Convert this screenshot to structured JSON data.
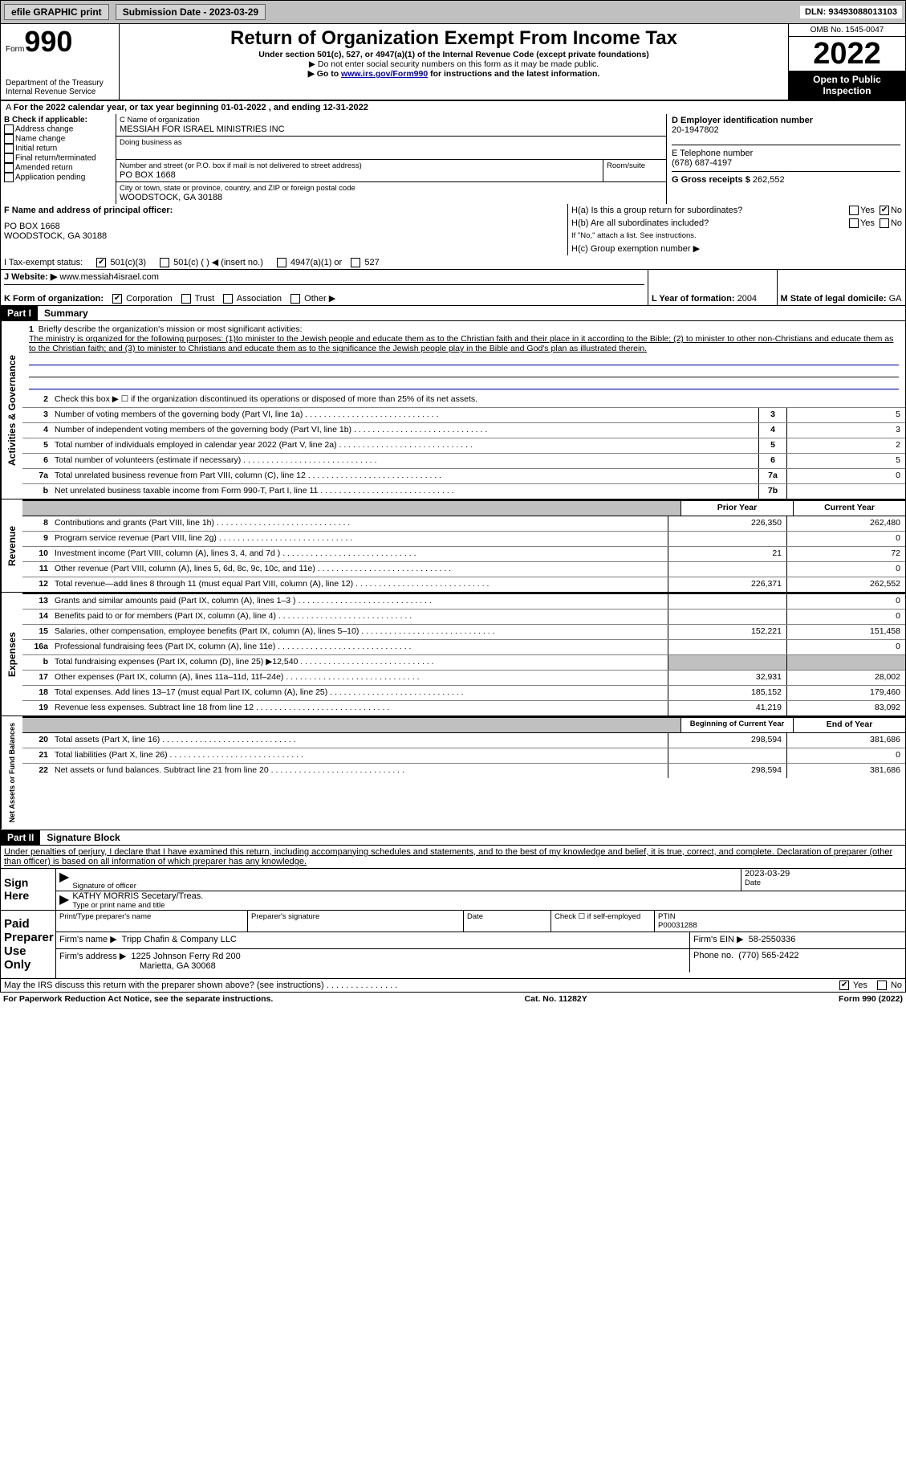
{
  "header_bar": {
    "efile_label": "efile GRAPHIC print",
    "submission_label": "Submission Date - 2023-03-29",
    "dln_label": "DLN: 93493088013103"
  },
  "title_block": {
    "form_word": "Form",
    "form_number": "990",
    "dept1": "Department of the Treasury",
    "dept2": "Internal Revenue Service",
    "main_title": "Return of Organization Exempt From Income Tax",
    "subtitle": "Under section 501(c), 527, or 4947(a)(1) of the Internal Revenue Code (except private foundations)",
    "note1": "▶ Do not enter social security numbers on this form as it may be made public.",
    "note2_pre": "▶ Go to ",
    "note2_link": "www.irs.gov/Form990",
    "note2_post": " for instructions and the latest information.",
    "omb": "OMB No. 1545-0047",
    "year": "2022",
    "open_public": "Open to Public Inspection"
  },
  "period_line": "For the 2022 calendar year, or tax year beginning 01-01-2022    , and ending 12-31-2022",
  "box_b": {
    "label": "B Check if applicable:",
    "items": [
      "Address change",
      "Name change",
      "Initial return",
      "Final return/terminated",
      "Amended return",
      "Application pending"
    ]
  },
  "box_c": {
    "name_label": "C Name of organization",
    "org_name": "MESSIAH FOR ISRAEL MINISTRIES INC",
    "dba_label": "Doing business as",
    "addr_label": "Number and street (or P.O. box if mail is not delivered to street address)",
    "room_label": "Room/suite",
    "street": "PO BOX 1668",
    "city_label": "City or town, state or province, country, and ZIP or foreign postal code",
    "city": "WOODSTOCK, GA  30188"
  },
  "box_d": {
    "ein_label": "D Employer identification number",
    "ein": "20-1947802"
  },
  "box_e": {
    "label": "E Telephone number",
    "phone": "(678) 687-4197"
  },
  "box_g": {
    "label": "G Gross receipts $",
    "amount": "262,552"
  },
  "box_f": {
    "label": "F  Name and address of principal officer:",
    "line1": "PO BOX 1668",
    "line2": "WOODSTOCK, GA  30188"
  },
  "box_h": {
    "ha_label": "H(a)  Is this a group return for subordinates?",
    "hb_label": "H(b)  Are all subordinates included?",
    "hb_note": "If \"No,\" attach a list. See instructions.",
    "hc_label": "H(c)  Group exemption number ▶",
    "yes": "Yes",
    "no": "No"
  },
  "box_i": {
    "label": "I    Tax-exempt status:",
    "opt1": "501(c)(3)",
    "opt2": "501(c) (   ) ◀ (insert no.)",
    "opt3": "4947(a)(1) or",
    "opt4": "527"
  },
  "box_j": {
    "label": "J    Website: ▶",
    "url": "www.messiah4israel.com"
  },
  "box_k": {
    "label": "K Form of organization:",
    "opts": [
      "Corporation",
      "Trust",
      "Association",
      "Other ▶"
    ]
  },
  "box_l": {
    "label": "L Year of formation:",
    "val": "2004"
  },
  "box_m": {
    "label": "M State of legal domicile:",
    "val": "GA"
  },
  "part1": {
    "header": "Part I",
    "title": "Summary"
  },
  "mission": {
    "num": "1",
    "label": "Briefly describe the organization's mission or most significant activities:",
    "text": "The ministry is organized for the following purposes: (1)to minister to the Jewish people and educate them as to the Christian faith and their place in it according to the Bible; (2) to minister to other non-Christians and educate them as to the Christian faith; and (3) to minister to Christians and educate them as to the significance the Jewish people play in the Bible and God's plan as illustrated therein."
  },
  "line2": "Check this box ▶ ☐  if the organization discontinued its operations or disposed of more than 25% of its net assets.",
  "gov_rows": [
    {
      "n": "3",
      "label": "Number of voting members of the governing body (Part VI, line 1a)",
      "box": "3",
      "val": "5"
    },
    {
      "n": "4",
      "label": "Number of independent voting members of the governing body (Part VI, line 1b)",
      "box": "4",
      "val": "3"
    },
    {
      "n": "5",
      "label": "Total number of individuals employed in calendar year 2022 (Part V, line 2a)",
      "box": "5",
      "val": "2"
    },
    {
      "n": "6",
      "label": "Total number of volunteers (estimate if necessary)",
      "box": "6",
      "val": "5"
    },
    {
      "n": "7a",
      "label": "Total unrelated business revenue from Part VIII, column (C), line 12",
      "box": "7a",
      "val": "0"
    },
    {
      "n": "b",
      "label": "Net unrelated business taxable income from Form 990-T, Part I, line 11",
      "box": "7b",
      "val": ""
    }
  ],
  "col_headers": {
    "prior": "Prior Year",
    "current": "Current Year"
  },
  "revenue_rows": [
    {
      "n": "8",
      "label": "Contributions and grants (Part VIII, line 1h)",
      "prior": "226,350",
      "current": "262,480"
    },
    {
      "n": "9",
      "label": "Program service revenue (Part VIII, line 2g)",
      "prior": "",
      "current": "0"
    },
    {
      "n": "10",
      "label": "Investment income (Part VIII, column (A), lines 3, 4, and 7d )",
      "prior": "21",
      "current": "72"
    },
    {
      "n": "11",
      "label": "Other revenue (Part VIII, column (A), lines 5, 6d, 8c, 9c, 10c, and 11e)",
      "prior": "",
      "current": "0"
    },
    {
      "n": "12",
      "label": "Total revenue—add lines 8 through 11 (must equal Part VIII, column (A), line 12)",
      "prior": "226,371",
      "current": "262,552"
    }
  ],
  "expense_rows": [
    {
      "n": "13",
      "label": "Grants and similar amounts paid (Part IX, column (A), lines 1–3 )",
      "prior": "",
      "current": "0"
    },
    {
      "n": "14",
      "label": "Benefits paid to or for members (Part IX, column (A), line 4)",
      "prior": "",
      "current": "0"
    },
    {
      "n": "15",
      "label": "Salaries, other compensation, employee benefits (Part IX, column (A), lines 5–10)",
      "prior": "152,221",
      "current": "151,458"
    },
    {
      "n": "16a",
      "label": "Professional fundraising fees (Part IX, column (A), line 11e)",
      "prior": "",
      "current": "0"
    },
    {
      "n": "b",
      "label": "Total fundraising expenses (Part IX, column (D), line 25) ▶12,540",
      "prior": "shaded",
      "current": "shaded"
    },
    {
      "n": "17",
      "label": "Other expenses (Part IX, column (A), lines 11a–11d, 11f–24e)",
      "prior": "32,931",
      "current": "28,002"
    },
    {
      "n": "18",
      "label": "Total expenses. Add lines 13–17 (must equal Part IX, column (A), line 25)",
      "prior": "185,152",
      "current": "179,460"
    },
    {
      "n": "19",
      "label": "Revenue less expenses. Subtract line 18 from line 12",
      "prior": "41,219",
      "current": "83,092"
    }
  ],
  "na_headers": {
    "begin": "Beginning of Current Year",
    "end": "End of Year"
  },
  "na_rows": [
    {
      "n": "20",
      "label": "Total assets (Part X, line 16)",
      "prior": "298,594",
      "current": "381,686"
    },
    {
      "n": "21",
      "label": "Total liabilities (Part X, line 26)",
      "prior": "",
      "current": "0"
    },
    {
      "n": "22",
      "label": "Net assets or fund balances. Subtract line 21 from line 20",
      "prior": "298,594",
      "current": "381,686"
    }
  ],
  "part2": {
    "header": "Part II",
    "title": "Signature Block",
    "declaration": "Under penalties of perjury, I declare that I have examined this return, including accompanying schedules and statements, and to the best of my knowledge and belief, it is true, correct, and complete. Declaration of preparer (other than officer) is based on all information of which preparer has any knowledge."
  },
  "sign": {
    "sign_here": "Sign Here",
    "sig_officer": "Signature of officer",
    "date": "Date",
    "date_val": "2023-03-29",
    "name": "KATHY MORRIS  Secetary/Treas.",
    "type_label": "Type or print name and title"
  },
  "preparer": {
    "paid": "Paid Preparer Use Only",
    "name_col": "Print/Type preparer's name",
    "sig_col": "Preparer's signature",
    "date_col": "Date",
    "check_label": "Check ☐ if self-employed",
    "ptin_label": "PTIN",
    "ptin": "P00031288",
    "firm_name_label": "Firm's name    ▶",
    "firm_name": "Tripp Chafin & Company LLC",
    "firm_ein_label": "Firm's EIN ▶",
    "firm_ein": "58-2550336",
    "firm_addr_label": "Firm's address ▶",
    "firm_addr1": "1225 Johnson Ferry Rd 200",
    "firm_addr2": "Marietta, GA  30068",
    "phone_label": "Phone no.",
    "phone": "(770) 565-2422"
  },
  "footer": {
    "discuss": "May the IRS discuss this return with the preparer shown above? (see instructions)",
    "paperwork": "For Paperwork Reduction Act Notice, see the separate instructions.",
    "cat": "Cat. No. 11282Y",
    "form": "Form 990 (2022)",
    "yes": "Yes",
    "no": "No"
  },
  "side_labels": {
    "gov": "Activities & Governance",
    "rev": "Revenue",
    "exp": "Expenses",
    "na": "Net Assets or Fund Balances"
  }
}
